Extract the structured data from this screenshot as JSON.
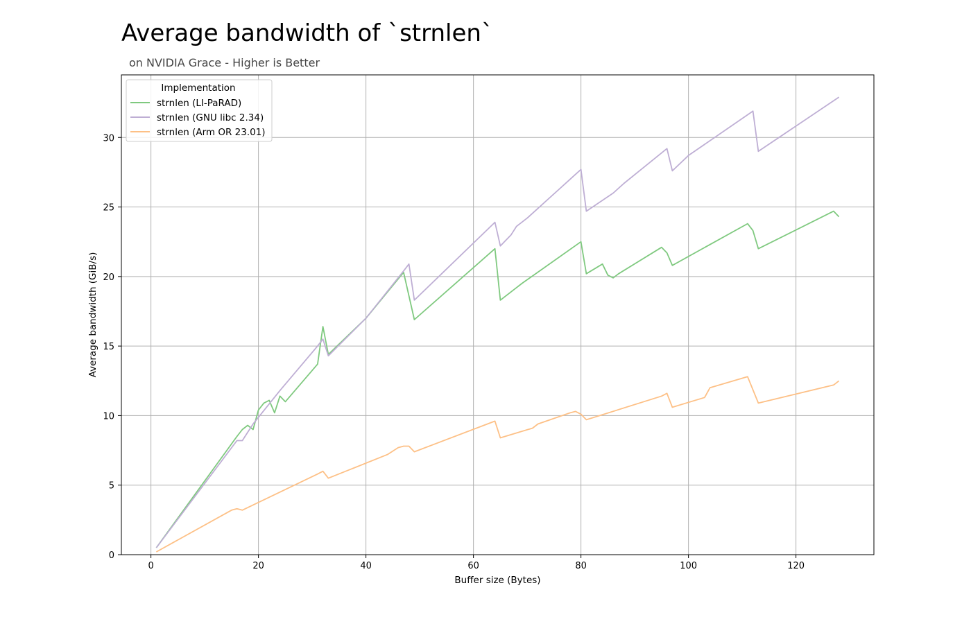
{
  "chart_data": {
    "type": "line",
    "title": "Average bandwidth of `strnlen`",
    "subtitle": "on NVIDIA Grace - Higher is Better",
    "xlabel": "Buffer size (Bytes)",
    "ylabel": "Average bandwidth (GiB/s)",
    "xlim": [
      -5.5,
      134.5
    ],
    "ylim": [
      0,
      34.5
    ],
    "xticks": [
      0,
      20,
      40,
      60,
      80,
      100,
      120
    ],
    "yticks": [
      0,
      5,
      10,
      15,
      20,
      25,
      30
    ],
    "grid": true,
    "legend": {
      "title": "Implementation",
      "placement": "top-left"
    },
    "series": [
      {
        "name": "strnlen (LI-PaRAD)",
        "color": "#7fc97f",
        "points": [
          [
            1,
            0.5
          ],
          [
            16,
            8.5
          ],
          [
            17,
            9.0
          ],
          [
            18,
            9.3
          ],
          [
            19,
            9.0
          ],
          [
            20,
            10.4
          ],
          [
            21,
            10.9
          ],
          [
            22,
            11.1
          ],
          [
            23,
            10.2
          ],
          [
            24,
            11.4
          ],
          [
            25,
            11.0
          ],
          [
            31,
            13.7
          ],
          [
            32,
            16.4
          ],
          [
            33,
            14.4
          ],
          [
            40,
            17.0
          ],
          [
            47,
            20.3
          ],
          [
            49,
            16.9
          ],
          [
            64,
            22.0
          ],
          [
            65,
            18.3
          ],
          [
            68,
            19.2
          ],
          [
            69,
            19.5
          ],
          [
            80,
            22.5
          ],
          [
            81,
            20.2
          ],
          [
            84,
            20.9
          ],
          [
            85,
            20.1
          ],
          [
            86,
            19.9
          ],
          [
            87,
            20.2
          ],
          [
            95,
            22.1
          ],
          [
            96,
            21.7
          ],
          [
            97,
            20.8
          ],
          [
            111,
            23.8
          ],
          [
            112,
            23.3
          ],
          [
            113,
            22.0
          ],
          [
            127,
            24.7
          ],
          [
            128,
            24.3
          ]
        ]
      },
      {
        "name": "strnlen (GNU libc 2.34)",
        "color": "#beaed4",
        "points": [
          [
            1,
            0.5
          ],
          [
            16,
            8.2
          ],
          [
            17,
            8.2
          ],
          [
            18,
            8.8
          ],
          [
            19,
            9.4
          ],
          [
            24,
            11.8
          ],
          [
            31,
            15.0
          ],
          [
            32,
            15.5
          ],
          [
            33,
            14.3
          ],
          [
            40,
            17.0
          ],
          [
            47,
            20.4
          ],
          [
            48,
            20.9
          ],
          [
            49,
            18.3
          ],
          [
            64,
            23.9
          ],
          [
            65,
            22.2
          ],
          [
            66,
            22.6
          ],
          [
            67,
            23.0
          ],
          [
            68,
            23.6
          ],
          [
            70,
            24.2
          ],
          [
            72,
            24.9
          ],
          [
            74,
            25.6
          ],
          [
            76,
            26.3
          ],
          [
            78,
            27.0
          ],
          [
            80,
            27.7
          ],
          [
            81,
            24.7
          ],
          [
            86,
            26.0
          ],
          [
            88,
            26.7
          ],
          [
            96,
            29.2
          ],
          [
            97,
            27.6
          ],
          [
            100,
            28.7
          ],
          [
            112,
            31.9
          ],
          [
            113,
            29.0
          ],
          [
            128,
            32.9
          ]
        ]
      },
      {
        "name": "strnlen (Arm OR 23.01)",
        "color": "#fdc086",
        "points": [
          [
            1,
            0.2
          ],
          [
            15,
            3.2
          ],
          [
            16,
            3.3
          ],
          [
            17,
            3.2
          ],
          [
            31,
            5.8
          ],
          [
            32,
            6.0
          ],
          [
            33,
            5.5
          ],
          [
            44,
            7.2
          ],
          [
            46,
            7.7
          ],
          [
            47,
            7.8
          ],
          [
            48,
            7.8
          ],
          [
            49,
            7.4
          ],
          [
            64,
            9.6
          ],
          [
            65,
            8.4
          ],
          [
            71,
            9.1
          ],
          [
            72,
            9.4
          ],
          [
            78,
            10.2
          ],
          [
            79,
            10.3
          ],
          [
            80,
            10.1
          ],
          [
            81,
            9.7
          ],
          [
            95,
            11.4
          ],
          [
            96,
            11.6
          ],
          [
            97,
            10.6
          ],
          [
            103,
            11.3
          ],
          [
            104,
            12.0
          ],
          [
            111,
            12.8
          ],
          [
            113,
            10.9
          ],
          [
            127,
            12.2
          ],
          [
            128,
            12.5
          ]
        ]
      }
    ]
  }
}
